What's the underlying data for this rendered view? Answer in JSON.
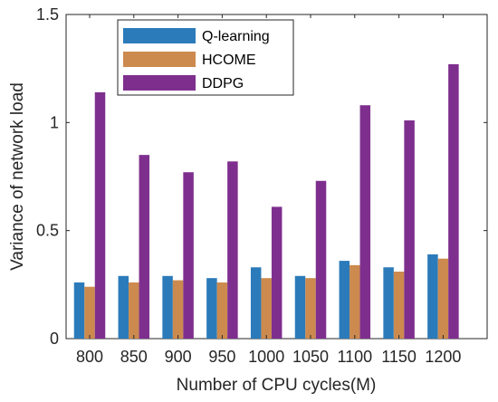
{
  "chart_data": {
    "type": "bar",
    "categories": [
      "800",
      "850",
      "900",
      "950",
      "1000",
      "1050",
      "1100",
      "1150",
      "1200"
    ],
    "series": [
      {
        "name": "Q-learning",
        "color": "#2b7bba",
        "values": [
          0.26,
          0.29,
          0.29,
          0.28,
          0.33,
          0.29,
          0.36,
          0.33,
          0.39
        ]
      },
      {
        "name": "HCOME",
        "color": "#cc8a4e",
        "values": [
          0.24,
          0.26,
          0.27,
          0.26,
          0.28,
          0.28,
          0.34,
          0.31,
          0.37
        ]
      },
      {
        "name": "DDPG",
        "color": "#7e2f8e",
        "values": [
          1.14,
          0.85,
          0.77,
          0.82,
          0.61,
          0.73,
          1.08,
          1.01,
          1.27
        ]
      }
    ],
    "xlabel": "Number of CPU cycles(M)",
    "ylabel": "Variance of network load",
    "ylim": [
      0,
      1.5
    ],
    "yticks": [
      "0",
      "0.5",
      "1",
      "1.5"
    ],
    "grid": false,
    "legend_position": "top-left"
  }
}
